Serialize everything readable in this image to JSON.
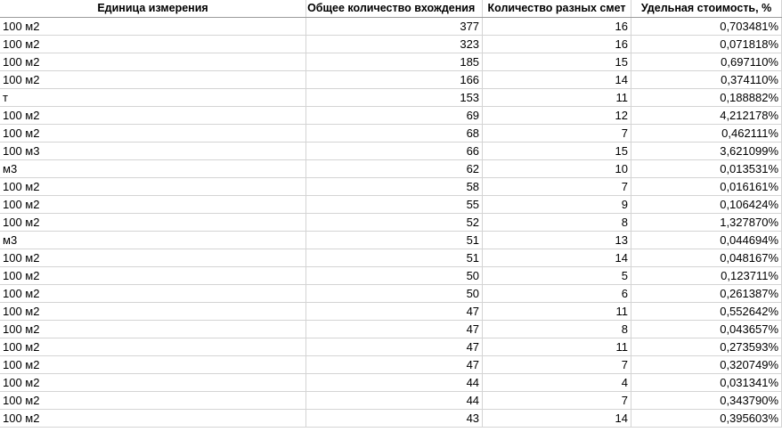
{
  "headers": [
    "Единица измерения",
    "Общее количество вхождения",
    "Количество разных смет",
    "Удельная стоимость, %"
  ],
  "rows": [
    [
      "100 м2",
      "377",
      "16",
      "0,703481%"
    ],
    [
      "100 м2",
      "323",
      "16",
      "0,071818%"
    ],
    [
      "100 м2",
      "185",
      "15",
      "0,697110%"
    ],
    [
      "100 м2",
      "166",
      "14",
      "0,374110%"
    ],
    [
      "т",
      "153",
      "11",
      "0,188882%"
    ],
    [
      "100 м2",
      "69",
      "12",
      "4,212178%"
    ],
    [
      "100 м2",
      "68",
      "7",
      "0,462111%"
    ],
    [
      "100 м3",
      "66",
      "15",
      "3,621099%"
    ],
    [
      "м3",
      "62",
      "10",
      "0,013531%"
    ],
    [
      "100 м2",
      "58",
      "7",
      "0,016161%"
    ],
    [
      "100 м2",
      "55",
      "9",
      "0,106424%"
    ],
    [
      "100 м2",
      "52",
      "8",
      "1,327870%"
    ],
    [
      "м3",
      "51",
      "13",
      "0,044694%"
    ],
    [
      "100 м2",
      "51",
      "14",
      "0,048167%"
    ],
    [
      "100 м2",
      "50",
      "5",
      "0,123711%"
    ],
    [
      "100 м2",
      "50",
      "6",
      "0,261387%"
    ],
    [
      "100 м2",
      "47",
      "11",
      "0,552642%"
    ],
    [
      "100 м2",
      "47",
      "8",
      "0,043657%"
    ],
    [
      "100 м2",
      "47",
      "11",
      "0,273593%"
    ],
    [
      "100 м2",
      "47",
      "7",
      "0,320749%"
    ],
    [
      "100 м2",
      "44",
      "4",
      "0,031341%"
    ],
    [
      "100 м2",
      "44",
      "7",
      "0,343790%"
    ],
    [
      "100 м2",
      "43",
      "14",
      "0,395603%"
    ]
  ]
}
